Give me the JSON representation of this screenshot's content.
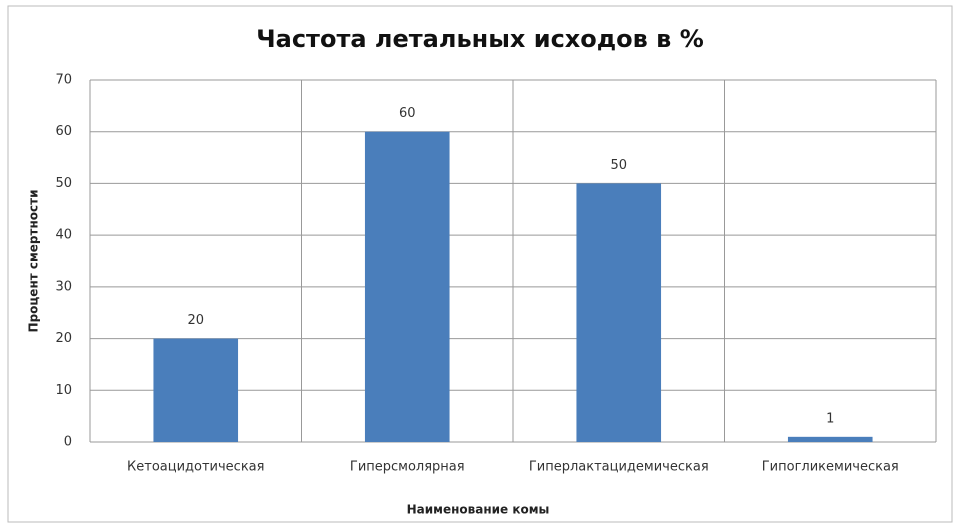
{
  "chart_data": {
    "type": "bar",
    "title": "Частота летальных исходов в %",
    "categories": [
      "Кетоацидотическая",
      "Гиперсмолярная",
      "Гиперлактацидемическая",
      "Гипогликемическая"
    ],
    "values": [
      20,
      60,
      50,
      1
    ],
    "color": "#4a7ebb",
    "ylim": [
      0,
      70
    ],
    "yticks": [
      0,
      10,
      20,
      30,
      40,
      50,
      60,
      70
    ],
    "grid": true,
    "y_label": "Процент смертности",
    "x_label": "Наименование комы"
  }
}
